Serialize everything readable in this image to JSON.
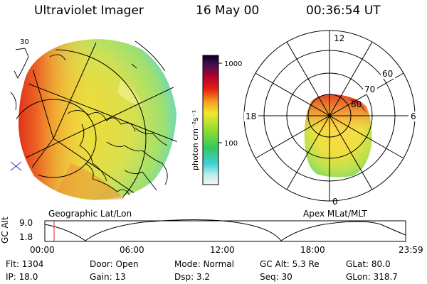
{
  "header": {
    "instrument": "Ultraviolet Imager",
    "date": "16 May 00",
    "time": "00:36:54 UT"
  },
  "colorbar": {
    "unit_label": "photon cm⁻²s⁻¹",
    "ticks": [
      "1000",
      "100"
    ]
  },
  "left_panel": {
    "caption": "Geographic Lat/Lon",
    "corner_label": "30"
  },
  "right_panel": {
    "caption": "Apex MLat/MLT",
    "mlt_labels": [
      "12",
      "18",
      "6",
      "0"
    ],
    "lat_labels": [
      "60",
      "70",
      "80"
    ]
  },
  "orbit_plot": {
    "ylabel": "GC Alt",
    "ytick_top": "9.0",
    "ytick_bottom": "1.8",
    "xticks": [
      "00:00",
      "06:00",
      "12:00",
      "18:00",
      "23:59"
    ],
    "marker_time_hours": 0.615
  },
  "info": {
    "flt": "Flt: 1304",
    "ip": "IP: 18.0",
    "door": "Door: Open",
    "gain": "Gain: 13",
    "mode": "Mode: Normal",
    "dsp": "Dsp:    3.2",
    "gcalt": "GC Alt: 5.3 Re",
    "seq": "Seq: 30",
    "glat": "GLat: 80.0",
    "glon": "GLon: 318.7"
  }
}
